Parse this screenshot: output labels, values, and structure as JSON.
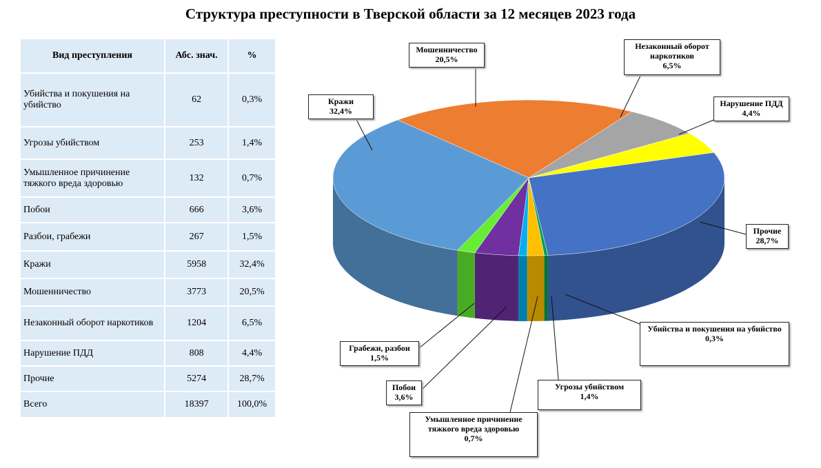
{
  "title": "Структура преступности в Тверской области за 12 месяцев 2023 года",
  "table": {
    "header": [
      "Вид преступления",
      "Абс. знач.",
      "%"
    ],
    "rows": [
      [
        "Убийства и покушения на убийство",
        62,
        "0,3%"
      ],
      [
        "Угрозы убийством",
        253,
        "1,4%"
      ],
      [
        "Умышленное причинение тяжкого вреда здоровью",
        132,
        "0,7%"
      ],
      [
        "Побои",
        666,
        "3,6%"
      ],
      [
        "Разбои, грабежи",
        267,
        "1,5%"
      ],
      [
        "Кражи",
        5958,
        "32,4%"
      ],
      [
        "Мошенничество",
        3773,
        "20,5%"
      ],
      [
        "Незаконный оборот наркотиков",
        1204,
        "6,5%"
      ],
      [
        "Нарушение ПДД",
        808,
        "4,4%"
      ],
      [
        "Прочие",
        5274,
        "28,7%"
      ],
      [
        "Всего",
        18397,
        "100,0%"
      ]
    ]
  },
  "chart_data": {
    "type": "pie",
    "categories": [
      "Мошенничество",
      "Незаконный оборот наркотиков",
      "Нарушение ПДД",
      "Прочие",
      "Убийства и покушения на убийство",
      "Угрозы убийством",
      "Умышленное причинение тяжкого вреда здоровью",
      "Побои",
      "Грабежи, разбои",
      "Кражи"
    ],
    "values": [
      20.5,
      6.5,
      4.4,
      28.7,
      0.3,
      1.4,
      0.7,
      3.6,
      1.5,
      32.4
    ],
    "value_labels": [
      "20,5%",
      "6,5%",
      "4,4%",
      "28,7%",
      "0,3%",
      "1,4%",
      "0,7%",
      "3,6%",
      "1,5%",
      "32,4%"
    ],
    "colors": [
      "#ED7D31",
      "#A5A5A5",
      "#FFFF00",
      "#4472C4",
      "#00A050",
      "#FFC000",
      "#00B0F0",
      "#7030A0",
      "#66EE33",
      "#5B9BD5"
    ]
  }
}
